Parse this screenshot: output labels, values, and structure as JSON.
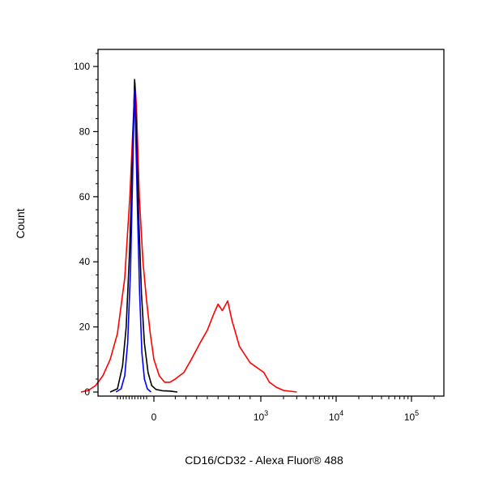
{
  "chart_data": {
    "type": "line",
    "title": "",
    "xlabel": "CD16/CD32 - Alexa Fluor® 488",
    "ylabel": "Count",
    "ylim": [
      0,
      105
    ],
    "xscale": "biexponential",
    "x_ticks": [
      {
        "value": 0,
        "label": "0"
      },
      {
        "value": 1000,
        "base": "10",
        "exp": "3"
      },
      {
        "value": 10000,
        "base": "10",
        "exp": "4"
      },
      {
        "value": 100000,
        "base": "10",
        "exp": "5"
      }
    ],
    "y_ticks": [
      {
        "value": 0,
        "label": "0"
      },
      {
        "value": 20,
        "label": "20"
      },
      {
        "value": 40,
        "label": "40"
      },
      {
        "value": 60,
        "label": "60"
      },
      {
        "value": 80,
        "label": "80"
      },
      {
        "value": 100,
        "label": "100"
      }
    ],
    "grid": false,
    "legend": "none",
    "series": [
      {
        "color": "#ff0000",
        "points": [
          [
            -1000,
            0
          ],
          [
            -900,
            0.5
          ],
          [
            -800,
            2
          ],
          [
            -700,
            5
          ],
          [
            -600,
            10
          ],
          [
            -500,
            18
          ],
          [
            -400,
            35
          ],
          [
            -330,
            60
          ],
          [
            -280,
            85
          ],
          [
            -260,
            95
          ],
          [
            -240,
            88
          ],
          [
            -200,
            60
          ],
          [
            -150,
            40
          ],
          [
            -100,
            28
          ],
          [
            -50,
            18
          ],
          [
            0,
            10
          ],
          [
            50,
            5
          ],
          [
            100,
            3
          ],
          [
            150,
            3
          ],
          [
            200,
            4
          ],
          [
            280,
            6
          ],
          [
            350,
            10
          ],
          [
            430,
            15
          ],
          [
            500,
            19
          ],
          [
            560,
            24
          ],
          [
            600,
            27
          ],
          [
            640,
            25
          ],
          [
            690,
            28
          ],
          [
            730,
            22
          ],
          [
            800,
            14
          ],
          [
            900,
            9
          ],
          [
            1100,
            6
          ],
          [
            1300,
            3
          ],
          [
            1600,
            1.5
          ],
          [
            2000,
            0.5
          ],
          [
            3000,
            0
          ]
        ]
      },
      {
        "color": "#000000",
        "points": [
          [
            -600,
            0
          ],
          [
            -500,
            1
          ],
          [
            -430,
            8
          ],
          [
            -380,
            20
          ],
          [
            -330,
            45
          ],
          [
            -290,
            75
          ],
          [
            -265,
            96
          ],
          [
            -240,
            80
          ],
          [
            -210,
            55
          ],
          [
            -170,
            30
          ],
          [
            -130,
            15
          ],
          [
            -80,
            6
          ],
          [
            -30,
            2
          ],
          [
            20,
            0.8
          ],
          [
            80,
            0.4
          ],
          [
            150,
            0.3
          ],
          [
            220,
            0
          ]
        ]
      },
      {
        "color": "#0000ff",
        "points": [
          [
            -520,
            0
          ],
          [
            -450,
            1
          ],
          [
            -400,
            5
          ],
          [
            -360,
            15
          ],
          [
            -320,
            38
          ],
          [
            -290,
            68
          ],
          [
            -268,
            93
          ],
          [
            -250,
            80
          ],
          [
            -225,
            55
          ],
          [
            -195,
            30
          ],
          [
            -165,
            12
          ],
          [
            -130,
            4
          ],
          [
            -90,
            1
          ],
          [
            -40,
            0
          ]
        ]
      }
    ]
  }
}
